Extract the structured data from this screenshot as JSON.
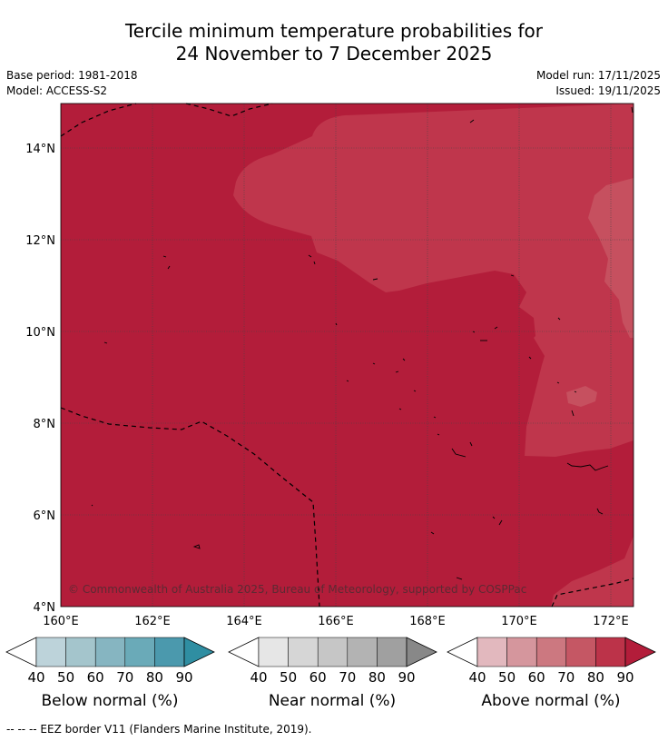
{
  "title": {
    "line1": "Tercile minimum temperature probabilities for",
    "line2": "24 November to 7 December 2025"
  },
  "meta": {
    "base_period": "Base period: 1981-2018",
    "model": "Model: ACCESS-S2",
    "model_run": "Model run: 17/11/2025",
    "issued": "Issued: 19/11/2025"
  },
  "map": {
    "lat_labels": [
      "14°N",
      "12°N",
      "10°N",
      "8°N",
      "6°N",
      "4°N"
    ],
    "lon_labels": [
      "160°E",
      "162°E",
      "164°E",
      "166°E",
      "168°E",
      "170°E",
      "172°E"
    ],
    "copyright": "© Commonwealth of Australia 2025, Bureau of Meteorology, supported by COSPPac",
    "colors": {
      "above_80_90": "#b31d3a",
      "above_70_80": "#bf364c",
      "above_60_70": "#c6505f",
      "coast": "#000000"
    }
  },
  "colorbars": [
    {
      "name": "below",
      "title": "Below normal (%)",
      "ticks": [
        "40",
        "50",
        "60",
        "70",
        "80",
        "90"
      ],
      "colors": [
        "#bdd3da",
        "#a4c5cc",
        "#86b5c1",
        "#6aaab8",
        "#4b99ad",
        "#2f8ea2"
      ]
    },
    {
      "name": "near",
      "title": "Near normal (%)",
      "ticks": [
        "40",
        "50",
        "60",
        "70",
        "80",
        "90"
      ],
      "colors": [
        "#e6e6e6",
        "#d6d6d6",
        "#c6c6c6",
        "#b3b3b3",
        "#a0a0a0",
        "#888888"
      ]
    },
    {
      "name": "above",
      "title": "Above normal (%)",
      "ticks": [
        "40",
        "50",
        "60",
        "70",
        "80",
        "90"
      ],
      "colors": [
        "#e2b8be",
        "#d5969d",
        "#cc7880",
        "#c55764",
        "#bc3349",
        "#b31d3a"
      ]
    }
  ],
  "footnote": "--  --  -- EEZ border V11 (Flanders Marine Institute, 2019)."
}
